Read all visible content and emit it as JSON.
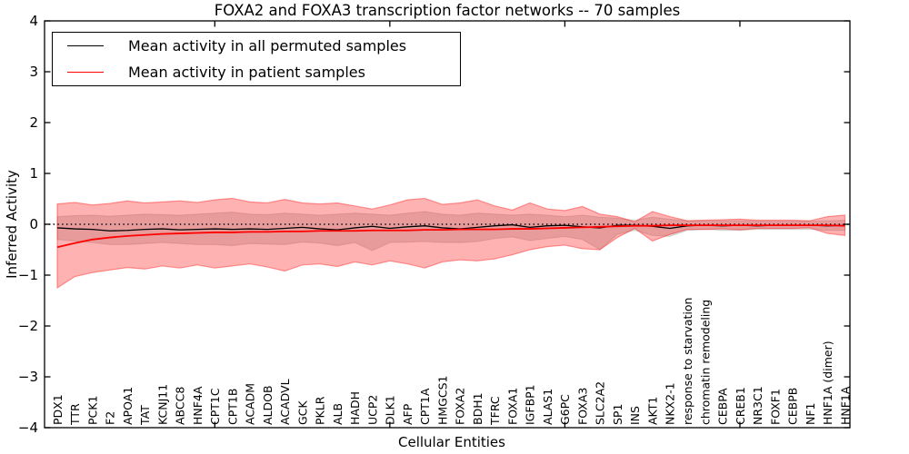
{
  "figure": {
    "background": "#ffffff"
  },
  "chart_data": {
    "type": "line",
    "title": "FOXA2 and FOXA3 transcription factor networks -- 70 samples",
    "xlabel": "Cellular Entities",
    "ylabel": "Inferred Activity",
    "ylim": [
      -4,
      4
    ],
    "yticks": [
      -4,
      -3,
      -2,
      -1,
      0,
      1,
      2,
      3,
      4
    ],
    "xticks_major_category_indices": [
      9,
      19,
      29,
      39
    ],
    "grid": false,
    "legend_position": "upper left",
    "zero_line": {
      "style": "dotted",
      "color": "#000000",
      "y": 0
    },
    "categories": [
      "PDX1",
      "TTR",
      "PCK1",
      "F2",
      "APOA1",
      "TAT",
      "KCNJ11",
      "ABCC8",
      "HNF4A",
      "CPT1C",
      "CPT1B",
      "ACADM",
      "ALDOB",
      "ACADVL",
      "GCK",
      "PKLR",
      "ALB",
      "HADH",
      "UCP2",
      "DLK1",
      "AFP",
      "CPT1A",
      "HMGCS1",
      "FOXA2",
      "BDH1",
      "TFRC",
      "FOXA1",
      "IGFBP1",
      "ALAS1",
      "G6PC",
      "FOXA3",
      "SLC2A2",
      "SP1",
      "INS",
      "AKT1",
      "NKX2-1",
      "response to starvation",
      "chromatin remodeling",
      "CEBPA",
      "CREB1",
      "NR3C1",
      "FOXF1",
      "CEBPB",
      "NF1",
      "HNF1A (dimer)",
      "HNF1A"
    ],
    "series": [
      {
        "name": "Mean activity in all permuted samples",
        "color": "#000000",
        "line_width": 1.3,
        "band_fill": "rgba(0,0,0,0.13)",
        "band_edge": "rgba(0,0,0,0.10)",
        "values": [
          -0.07,
          -0.09,
          -0.1,
          -0.13,
          -0.12,
          -0.1,
          -0.09,
          -0.11,
          -0.1,
          -0.09,
          -0.1,
          -0.09,
          -0.1,
          -0.08,
          -0.06,
          -0.09,
          -0.11,
          -0.07,
          -0.04,
          -0.08,
          -0.05,
          -0.03,
          -0.07,
          -0.09,
          -0.06,
          -0.03,
          -0.01,
          -0.06,
          -0.03,
          -0.02,
          -0.05,
          -0.07,
          -0.02,
          -0.02,
          -0.04,
          -0.08,
          -0.03,
          -0.02,
          -0.03,
          -0.02,
          -0.03,
          -0.02,
          -0.02,
          -0.02,
          -0.03,
          -0.02
        ],
        "band_upper": [
          0.15,
          0.17,
          0.18,
          0.16,
          0.18,
          0.2,
          0.19,
          0.18,
          0.2,
          0.22,
          0.24,
          0.2,
          0.19,
          0.22,
          0.2,
          0.18,
          0.2,
          0.22,
          0.2,
          0.18,
          0.22,
          0.25,
          0.2,
          0.18,
          0.22,
          0.2,
          0.18,
          0.2,
          0.18,
          0.15,
          0.18,
          0.14,
          0.12,
          0.08,
          0.14,
          0.1,
          0.07,
          0.07,
          0.07,
          0.07,
          0.06,
          0.06,
          0.06,
          0.06,
          0.07,
          0.08
        ],
        "band_lower": [
          -0.3,
          -0.33,
          -0.36,
          -0.4,
          -0.4,
          -0.38,
          -0.36,
          -0.38,
          -0.4,
          -0.4,
          -0.42,
          -0.38,
          -0.39,
          -0.4,
          -0.35,
          -0.37,
          -0.42,
          -0.36,
          -0.52,
          -0.36,
          -0.35,
          -0.34,
          -0.36,
          -0.36,
          -0.34,
          -0.28,
          -0.25,
          -0.32,
          -0.28,
          -0.24,
          -0.3,
          -0.5,
          -0.2,
          -0.12,
          -0.22,
          -0.24,
          -0.12,
          -0.1,
          -0.12,
          -0.12,
          -0.1,
          -0.1,
          -0.1,
          -0.1,
          -0.12,
          -0.12
        ]
      },
      {
        "name": "Mean activity in patient samples",
        "color": "#ff0000",
        "line_width": 1.8,
        "band_fill": "rgba(255,0,0,0.30)",
        "band_edge": "rgba(255,0,0,0.38)",
        "values": [
          -0.45,
          -0.37,
          -0.3,
          -0.26,
          -0.23,
          -0.21,
          -0.19,
          -0.18,
          -0.17,
          -0.16,
          -0.16,
          -0.15,
          -0.15,
          -0.14,
          -0.14,
          -0.13,
          -0.13,
          -0.13,
          -0.12,
          -0.12,
          -0.12,
          -0.11,
          -0.11,
          -0.1,
          -0.1,
          -0.1,
          -0.09,
          -0.09,
          -0.08,
          -0.07,
          -0.06,
          -0.05,
          -0.04,
          -0.03,
          -0.03,
          -0.02,
          -0.02,
          -0.02,
          -0.02,
          -0.02,
          -0.02,
          -0.02,
          -0.02,
          -0.02,
          -0.02,
          -0.03
        ],
        "band_upper": [
          0.4,
          0.43,
          0.38,
          0.41,
          0.46,
          0.42,
          0.44,
          0.46,
          0.43,
          0.48,
          0.51,
          0.44,
          0.42,
          0.49,
          0.42,
          0.4,
          0.42,
          0.36,
          0.3,
          0.38,
          0.48,
          0.51,
          0.39,
          0.42,
          0.48,
          0.36,
          0.28,
          0.42,
          0.3,
          0.27,
          0.35,
          0.2,
          0.15,
          0.05,
          0.25,
          0.15,
          0.07,
          0.08,
          0.09,
          0.1,
          0.08,
          0.08,
          0.08,
          0.07,
          0.15,
          0.18
        ],
        "band_lower": [
          -1.25,
          -1.03,
          -0.95,
          -0.9,
          -0.85,
          -0.88,
          -0.82,
          -0.86,
          -0.8,
          -0.86,
          -0.82,
          -0.78,
          -0.84,
          -0.92,
          -0.8,
          -0.78,
          -0.83,
          -0.74,
          -0.8,
          -0.72,
          -0.78,
          -0.86,
          -0.74,
          -0.7,
          -0.72,
          -0.68,
          -0.6,
          -0.5,
          -0.44,
          -0.41,
          -0.48,
          -0.5,
          -0.26,
          -0.08,
          -0.33,
          -0.2,
          -0.1,
          -0.1,
          -0.09,
          -0.11,
          -0.08,
          -0.08,
          -0.08,
          -0.07,
          -0.18,
          -0.22
        ]
      }
    ]
  }
}
